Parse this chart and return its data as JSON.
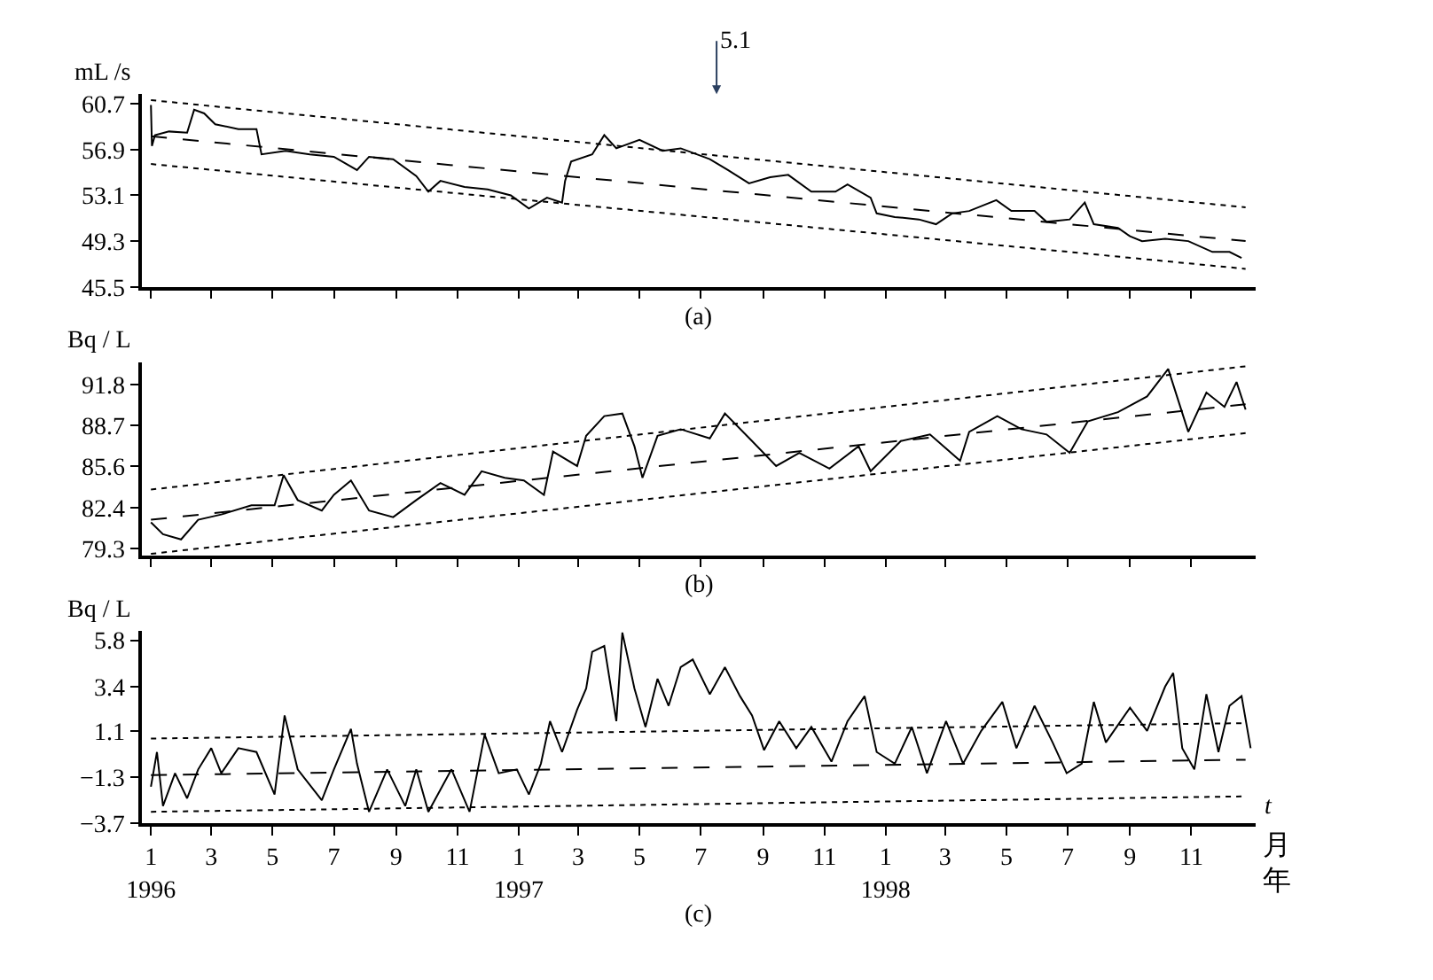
{
  "chart_data": [
    {
      "type": "line",
      "ylabel": "mL /s",
      "xlim": [
        "1995-12-23",
        "1999-01-04"
      ],
      "ylim": [
        45.5,
        61.5
      ],
      "yticks": [
        45.5,
        49.3,
        53.1,
        56.9,
        60.7
      ],
      "tick_labels": "y",
      "annotations": [
        "(a)",
        "5.1"
      ],
      "series": [
        {
          "color": "#000000",
          "line_style": "solid",
          "x": [
            "1996-01-01",
            "1996-01-02",
            "1996-01-05",
            "1996-01-19",
            "1996-02-06",
            "1996-02-13",
            "1996-02-23",
            "1996-03-05",
            "1996-03-28",
            "1996-04-15",
            "1996-04-20",
            "1996-05-14",
            "1996-06-07",
            "1996-07-01",
            "1996-07-24",
            "1996-08-05",
            "1996-08-29",
            "1996-09-21",
            "1996-10-03",
            "1996-10-15",
            "1996-11-08",
            "1996-12-01",
            "1996-12-24",
            "1997-01-11",
            "1997-01-29",
            "1997-02-13",
            "1997-02-16",
            "1997-02-22",
            "1997-03-15",
            "1997-03-27",
            "1997-04-08",
            "1997-05-01",
            "1997-05-24",
            "1997-06-11",
            "1997-07-10",
            "1997-07-28",
            "1997-08-18",
            "1997-09-08",
            "1997-09-26",
            "1997-10-19",
            "1997-11-12",
            "1997-11-24",
            "1997-12-17",
            "1997-12-23",
            "1998-01-10",
            "1998-02-03",
            "1998-02-20",
            "1998-03-08",
            "1998-03-25",
            "1998-04-21",
            "1998-05-06",
            "1998-05-29",
            "1998-06-10",
            "1998-07-03",
            "1998-07-18",
            "1998-07-27",
            "1998-08-20",
            "1998-09-01",
            "1998-09-13",
            "1998-10-06",
            "1998-10-29",
            "1998-11-22",
            "1998-12-09",
            "1998-12-21"
          ],
          "values": [
            60.6,
            57.2,
            58.1,
            58.4,
            58.3,
            60.2,
            59.9,
            59.0,
            58.6,
            58.6,
            56.5,
            56.8,
            56.5,
            56.3,
            55.2,
            56.3,
            56.1,
            54.7,
            53.4,
            54.3,
            53.8,
            53.6,
            53.1,
            52.0,
            52.9,
            52.5,
            54.3,
            55.9,
            56.5,
            58.1,
            57.0,
            57.7,
            56.8,
            57.0,
            56.1,
            55.2,
            54.1,
            54.6,
            54.8,
            53.4,
            53.4,
            54.0,
            52.9,
            51.6,
            51.3,
            51.1,
            50.7,
            51.6,
            51.8,
            52.7,
            51.8,
            51.8,
            50.9,
            51.1,
            52.5,
            50.7,
            50.4,
            49.7,
            49.3,
            49.5,
            49.3,
            48.4,
            48.4,
            47.9
          ]
        },
        {
          "type": "line",
          "color": "#000000",
          "line_style": "dotted",
          "x": [
            "1996-01-01",
            "1998-12-25"
          ],
          "values": [
            61.0,
            52.1
          ]
        },
        {
          "type": "line",
          "color": "#000000",
          "line_style": "dashed",
          "x": [
            "1996-01-01",
            "1998-12-25"
          ],
          "values": [
            58.0,
            49.3
          ]
        },
        {
          "type": "line",
          "color": "#000000",
          "line_style": "dotted",
          "x": [
            "1996-01-01",
            "1998-12-25"
          ],
          "values": [
            55.7,
            47.0
          ]
        }
      ]
    },
    {
      "type": "line",
      "ylabel": "Bq / L",
      "xlim": [
        "1995-12-23",
        "1999-01-04"
      ],
      "ylim": [
        78.8,
        93.5
      ],
      "yticks": [
        79.3,
        82.4,
        85.6,
        88.7,
        91.8
      ],
      "tick_labels": "y",
      "annotations": [
        "(b)"
      ],
      "series": [
        {
          "color": "#000000",
          "line_style": "solid",
          "x": [
            "1996-01-01",
            "1996-01-13",
            "1996-01-31",
            "1996-02-17",
            "1996-03-11",
            "1996-04-10",
            "1996-05-03",
            "1996-05-12",
            "1996-05-26",
            "1996-06-19",
            "1996-07-01",
            "1996-07-18",
            "1996-08-05",
            "1996-08-29",
            "1996-09-21",
            "1996-10-15",
            "1996-11-08",
            "1996-11-25",
            "1996-12-18",
            "1997-01-06",
            "1997-01-26",
            "1997-02-04",
            "1997-02-28",
            "1997-03-09",
            "1997-03-27",
            "1997-04-14",
            "1997-04-26",
            "1997-05-04",
            "1997-05-19",
            "1997-06-11",
            "1997-07-10",
            "1997-07-25",
            "1997-08-21",
            "1997-09-14",
            "1997-10-07",
            "1997-11-06",
            "1997-12-05",
            "1997-12-17",
            "1998-01-16",
            "1998-02-14",
            "1998-03-16",
            "1998-03-25",
            "1998-04-22",
            "1998-05-16",
            "1998-06-10",
            "1998-07-03",
            "1998-07-21",
            "1998-08-20",
            "1998-09-18",
            "1998-10-09",
            "1998-10-29",
            "1998-11-16",
            "1998-12-04",
            "1998-12-16",
            "1998-12-25"
          ],
          "values": [
            81.3,
            80.4,
            80.0,
            81.5,
            81.9,
            82.6,
            82.6,
            84.9,
            83.0,
            82.2,
            83.4,
            84.5,
            82.2,
            81.7,
            83.0,
            84.3,
            83.4,
            85.2,
            84.7,
            84.5,
            83.4,
            86.7,
            85.6,
            87.9,
            89.4,
            89.6,
            87.1,
            84.7,
            87.9,
            88.4,
            87.7,
            89.6,
            87.5,
            85.6,
            86.6,
            85.4,
            87.1,
            85.2,
            87.5,
            88.0,
            86.0,
            88.2,
            89.4,
            88.4,
            88.0,
            86.6,
            89.0,
            89.7,
            90.9,
            93.0,
            88.2,
            91.2,
            90.1,
            92.0,
            89.9
          ]
        },
        {
          "type": "line",
          "color": "#000000",
          "line_style": "dotted",
          "x": [
            "1996-01-01",
            "1998-12-25"
          ],
          "values": [
            83.8,
            93.2
          ]
        },
        {
          "type": "line",
          "color": "#000000",
          "line_style": "dashed",
          "x": [
            "1996-01-01",
            "1998-12-25"
          ],
          "values": [
            81.5,
            90.3
          ]
        },
        {
          "type": "line",
          "color": "#000000",
          "line_style": "dotted",
          "x": [
            "1996-01-01",
            "1998-12-25"
          ],
          "values": [
            78.9,
            88.1
          ]
        }
      ]
    },
    {
      "type": "line",
      "ylabel": "Bq / L",
      "xlabel": "t",
      "xlim": [
        "1995-12-23",
        "1999-01-04"
      ],
      "ylim": [
        -3.7,
        6.3
      ],
      "yticks": [
        -3.7,
        -1.3,
        1.1,
        3.4,
        5.8
      ],
      "xticks": [
        {
          "value": "1996-01-01",
          "label": "1\n1996"
        },
        {
          "value": "1996-03-01",
          "label": "3"
        },
        {
          "value": "1996-05-01",
          "label": "5"
        },
        {
          "value": "1996-07-01",
          "label": "7"
        },
        {
          "value": "1996-09-01",
          "label": "9"
        },
        {
          "value": "1996-11-01",
          "label": "11"
        },
        {
          "value": "1997-01-01",
          "label": "1\n1997"
        },
        {
          "value": "1997-03-01",
          "label": "3"
        },
        {
          "value": "1997-05-01",
          "label": "5"
        },
        {
          "value": "1997-07-01",
          "label": "7"
        },
        {
          "value": "1997-09-01",
          "label": "9"
        },
        {
          "value": "1997-11-01",
          "label": "11"
        },
        {
          "value": "1998-01-01",
          "label": "1\n1998"
        },
        {
          "value": "1998-03-01",
          "label": "3"
        },
        {
          "value": "1998-05-01",
          "label": "5"
        },
        {
          "value": "1998-07-01",
          "label": "7"
        },
        {
          "value": "1998-09-01",
          "label": "9"
        },
        {
          "value": "1998-11-01",
          "label": "11"
        }
      ],
      "annotations": [
        "(c)",
        "月",
        "年"
      ],
      "series": [
        {
          "color": "#000000",
          "line_style": "solid",
          "x": [
            "1996-01-01",
            "1996-01-07",
            "1996-01-13",
            "1996-01-25",
            "1996-02-06",
            "1996-02-17",
            "1996-03-01",
            "1996-03-11",
            "1996-03-28",
            "1996-04-15",
            "1996-05-03",
            "1996-05-13",
            "1996-05-26",
            "1996-06-19",
            "1996-07-01",
            "1996-07-18",
            "1996-07-24",
            "1996-08-05",
            "1996-08-23",
            "1996-09-10",
            "1996-09-21",
            "1996-10-03",
            "1996-10-26",
            "1996-11-13",
            "1996-11-28",
            "1996-12-12",
            "1996-12-30",
            "1997-01-11",
            "1997-01-23",
            "1997-02-01",
            "1997-02-13",
            "1997-02-28",
            "1997-03-09",
            "1997-03-15",
            "1997-03-27",
            "1997-04-08",
            "1997-04-14",
            "1997-04-26",
            "1997-05-07",
            "1997-05-19",
            "1997-05-30",
            "1997-06-11",
            "1997-06-23",
            "1997-07-10",
            "1997-07-25",
            "1997-08-09",
            "1997-08-21",
            "1997-09-02",
            "1997-09-17",
            "1997-10-04",
            "1997-10-19",
            "1997-11-08",
            "1997-11-24",
            "1997-12-11",
            "1997-12-23",
            "1998-01-10",
            "1998-01-27",
            "1998-02-11",
            "1998-03-02",
            "1998-03-19",
            "1998-04-06",
            "1998-04-27",
            "1998-05-11",
            "1998-05-29",
            "1998-06-16",
            "1998-06-30",
            "1998-07-15",
            "1998-07-27",
            "1998-08-08",
            "1998-09-01",
            "1998-09-18",
            "1998-10-06",
            "1998-10-14",
            "1998-10-23",
            "1998-11-04",
            "1998-11-16",
            "1998-11-28",
            "1998-12-09",
            "1998-12-21",
            "1998-12-30"
          ],
          "values": [
            -1.8,
            0.0,
            -2.8,
            -1.1,
            -2.4,
            -0.9,
            0.2,
            -1.1,
            0.2,
            0.0,
            -2.2,
            1.9,
            -0.9,
            -2.5,
            -0.9,
            1.2,
            -0.6,
            -3.1,
            -0.9,
            -2.8,
            -0.9,
            -3.1,
            -0.9,
            -3.1,
            0.9,
            -1.1,
            -0.9,
            -2.2,
            -0.6,
            1.6,
            0.0,
            2.2,
            3.3,
            5.2,
            5.5,
            1.6,
            6.2,
            3.3,
            1.3,
            3.8,
            2.4,
            4.4,
            4.8,
            3.0,
            4.4,
            2.9,
            1.9,
            0.1,
            1.6,
            0.2,
            1.3,
            -0.5,
            1.6,
            2.9,
            0.0,
            -0.6,
            1.3,
            -1.1,
            1.6,
            -0.6,
            1.1,
            2.6,
            0.2,
            2.4,
            0.5,
            -1.1,
            -0.6,
            2.6,
            0.5,
            2.3,
            1.1,
            3.4,
            4.1,
            0.2,
            -0.9,
            3.0,
            0.0,
            2.4,
            2.9,
            0.2
          ]
        },
        {
          "type": "line",
          "color": "#000000",
          "line_style": "dotted",
          "x": [
            "1996-01-01",
            "1998-12-25"
          ],
          "values": [
            0.7,
            1.5
          ]
        },
        {
          "type": "line",
          "color": "#000000",
          "line_style": "dashed",
          "x": [
            "1996-01-01",
            "1998-12-25"
          ],
          "values": [
            -1.2,
            -0.4
          ]
        },
        {
          "type": "line",
          "color": "#000000",
          "line_style": "dotted",
          "x": [
            "1996-01-01",
            "1998-12-25"
          ],
          "values": [
            -3.1,
            -2.3
          ]
        }
      ]
    }
  ]
}
